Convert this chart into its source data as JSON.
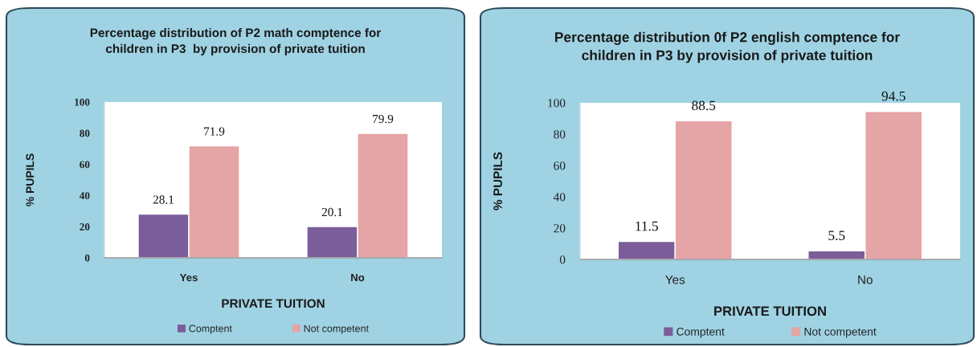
{
  "chart_data": [
    {
      "type": "bar",
      "title": "Percentage distribution of P2 math comptence for\nchildren in P3  by provision of private tuition",
      "xlabel": "PRIVATE TUITION",
      "ylabel": "% PUPILS",
      "categories": [
        "Yes",
        "No"
      ],
      "series": [
        {
          "name": "Comptent",
          "color": "#7a5d99",
          "values": [
            28.1,
            20.1
          ]
        },
        {
          "name": "Not competent",
          "color": "#e5a4a6",
          "values": [
            71.9,
            79.9
          ]
        }
      ],
      "ylim": [
        0,
        100
      ],
      "yticks": [
        0,
        20,
        40,
        60,
        80,
        100
      ],
      "data_labels": true,
      "legend": "bottom"
    },
    {
      "type": "bar",
      "title": "Percentage distribution 0f P2 english comptence for\nchildren in P3 by provision of private tuition",
      "xlabel": "PRIVATE TUITION",
      "ylabel": "% PUPILS",
      "categories": [
        "Yes",
        "No"
      ],
      "series": [
        {
          "name": "Comptent",
          "color": "#7a5d99",
          "values": [
            11.5,
            5.5
          ]
        },
        {
          "name": "Not competent",
          "color": "#e5a4a6",
          "values": [
            88.5,
            94.5
          ]
        }
      ],
      "ylim": [
        0,
        100
      ],
      "yticks": [
        0,
        20,
        40,
        60,
        80,
        100
      ],
      "data_labels": true,
      "legend": "bottom"
    }
  ]
}
